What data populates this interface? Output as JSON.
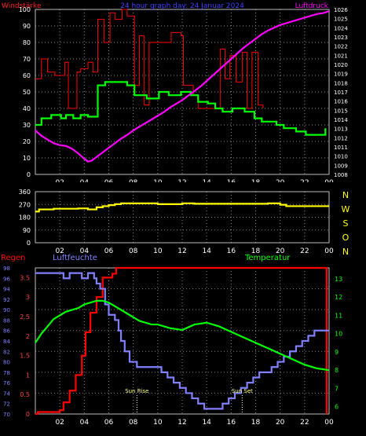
{
  "chart_data": [
    {
      "type": "line",
      "title": "24 hour graph day: 24 Januar 2024",
      "left_label": "Windstärke",
      "right_label": "Luftdruck",
      "colors": {
        "title": "#4040ff",
        "left_label": "#ff2020",
        "right_label": "#ff00ff",
        "ticks": "#ffffff",
        "right_ticks": "#ffffff"
      },
      "x_ticks": [
        "02",
        "04",
        "06",
        "08",
        "10",
        "12",
        "14",
        "16",
        "18",
        "20",
        "22",
        "00"
      ],
      "y_left_ticks": [
        "0",
        "10",
        "20",
        "30",
        "40",
        "50",
        "60",
        "70",
        "80",
        "90",
        "100"
      ],
      "y_right_ticks": [
        "1008",
        "1009",
        "1010",
        "1011",
        "1012",
        "1013",
        "1014",
        "1015",
        "1016",
        "1017",
        "1018",
        "1019",
        "1020",
        "1021",
        "1022",
        "1023",
        "1024",
        "1025",
        "1026"
      ],
      "xlim": [
        0,
        24
      ],
      "ylim": [
        0,
        100
      ],
      "y_right_lim": [
        1008,
        1026
      ],
      "grid": true,
      "series": [
        {
          "color": "#ff0000",
          "style": "step",
          "axis": "left",
          "x": [
            0,
            0.5,
            1,
            1.6,
            2.4,
            2.7,
            3.4,
            3.7,
            4.3,
            4.7,
            5.1,
            5.6,
            6.1,
            6.5,
            7.1,
            7.5,
            8.1,
            8.5,
            8.9,
            9.3,
            9.5,
            9.9,
            10.3,
            11.1,
            11.9,
            12.1,
            12.9,
            13.3,
            15.1,
            15.5,
            15.9,
            16.4,
            16.9,
            17.3,
            17.7,
            18.2,
            18.6
          ],
          "y": [
            58,
            70,
            62,
            60,
            68,
            40,
            62,
            64,
            68,
            62,
            94,
            80,
            98,
            94,
            100,
            96,
            54,
            84,
            42,
            80,
            80,
            80,
            80,
            86,
            84,
            54,
            48,
            40,
            76,
            58,
            72,
            56,
            74,
            40,
            74,
            42,
            40
          ]
        },
        {
          "color": "#00ff00",
          "style": "step",
          "axis": "left",
          "x": [
            0,
            0.5,
            1.3,
            2.1,
            2.5,
            3.1,
            3.7,
            4.3,
            5.1,
            5.7,
            7.5,
            8.1,
            9.1,
            10.1,
            10.9,
            11.9,
            12.7,
            13.3,
            14.1,
            14.7,
            15.3,
            16.1,
            17.1,
            17.9,
            18.5,
            19.7,
            20.3,
            21.3,
            22.1,
            23.7
          ],
          "y": [
            30,
            34,
            36,
            34,
            36,
            34,
            36,
            35,
            54,
            56,
            54,
            48,
            46,
            50,
            48,
            50,
            48,
            44,
            43,
            40,
            38,
            40,
            38,
            34,
            32,
            30,
            28,
            26,
            24,
            28
          ]
        },
        {
          "color": "#ff00ff",
          "style": "line",
          "axis": "right",
          "x": [
            0,
            0.5,
            1,
            1.5,
            2,
            2.5,
            3,
            3.5,
            4,
            4.3,
            4.6,
            5,
            5.5,
            6,
            6.5,
            7,
            7.5,
            8,
            8.5,
            9,
            9.5,
            10,
            10.5,
            11,
            11.5,
            12,
            12.5,
            13,
            13.5,
            14,
            14.5,
            15,
            15.5,
            16,
            16.5,
            17,
            17.5,
            18,
            18.5,
            19,
            19.5,
            20,
            20.5,
            21,
            21.5,
            22,
            22.5,
            23,
            23.5,
            24
          ],
          "y": [
            1012.8,
            1012.2,
            1011.8,
            1011.4,
            1011.2,
            1011.1,
            1010.8,
            1010.3,
            1009.7,
            1009.4,
            1009.5,
            1009.9,
            1010.4,
            1010.9,
            1011.4,
            1011.9,
            1012.3,
            1012.8,
            1013.2,
            1013.6,
            1014.0,
            1014.4,
            1014.8,
            1015.3,
            1015.7,
            1016.1,
            1016.6,
            1017.1,
            1017.6,
            1018.2,
            1018.8,
            1019.4,
            1020.0,
            1020.6,
            1021.2,
            1021.8,
            1022.3,
            1022.8,
            1023.3,
            1023.7,
            1024.0,
            1024.3,
            1024.5,
            1024.7,
            1024.9,
            1025.1,
            1025.3,
            1025.5,
            1025.6,
            1025.8
          ]
        }
      ]
    },
    {
      "type": "line",
      "title": "",
      "x_ticks": [
        "02",
        "04",
        "06",
        "08",
        "10",
        "12",
        "14",
        "16",
        "18",
        "20",
        "22",
        "00"
      ],
      "y_left_ticks": [
        "0",
        "90",
        "180",
        "270",
        "360"
      ],
      "ylim": [
        0,
        360
      ],
      "xlim": [
        0,
        24
      ],
      "direction_labels": [
        "N",
        "W",
        "S",
        "O",
        "N"
      ],
      "grid": true,
      "series": [
        {
          "color": "#ffff00",
          "style": "step",
          "axis": "left",
          "x": [
            0,
            0.3,
            1.5,
            3.5,
            4.3,
            5,
            5.5,
            6,
            6.5,
            7,
            10,
            12,
            13,
            19,
            20,
            20.5,
            24
          ],
          "y": [
            220,
            235,
            240,
            242,
            235,
            250,
            258,
            265,
            272,
            278,
            272,
            278,
            275,
            278,
            268,
            258,
            258
          ]
        }
      ]
    },
    {
      "type": "line",
      "labels": {
        "left": "Regen",
        "humidity": "Luftfeuchte",
        "right": "Temperatur"
      },
      "colors": {
        "left": "#ff0000",
        "humidity": "#8080ff",
        "right": "#00ff00"
      },
      "x_ticks": [
        "02",
        "04",
        "06",
        "08",
        "10",
        "12",
        "14",
        "16",
        "18",
        "20",
        "22",
        "00"
      ],
      "y_rain_ticks": [
        "0",
        "0.5",
        "1",
        "1.5",
        "2",
        "2.5",
        "3",
        "3.5"
      ],
      "y_humidity_ticks": [
        "70",
        "72",
        "74",
        "76",
        "78",
        "80",
        "82",
        "84",
        "86",
        "88",
        "90",
        "92",
        "94",
        "96",
        "98"
      ],
      "y_temp_ticks": [
        "6",
        "7",
        "8",
        "9",
        "10",
        "11",
        "12",
        "13"
      ],
      "rain_lim": [
        0,
        3.75
      ],
      "humidity_lim": [
        70,
        98
      ],
      "temp_lim": [
        5.6,
        13.6
      ],
      "xlim": [
        0,
        24
      ],
      "annotations": [
        {
          "text": "Sun Rise",
          "x": 8.3
        },
        {
          "text": "Sun Set",
          "x": 16.9
        }
      ],
      "grid": true,
      "series": [
        {
          "color": "#ff0000",
          "axis": "rain",
          "style": "step",
          "x": [
            0,
            0.2,
            2,
            2.3,
            2.8,
            3.3,
            3.8,
            4.1,
            4.5,
            5.0,
            5.5,
            6.0,
            6.3,
            6.6,
            7.2,
            23.6,
            23.8
          ],
          "y": [
            0,
            0.05,
            0.1,
            0.3,
            0.6,
            1.0,
            1.5,
            2.1,
            2.6,
            3.0,
            3.5,
            3.5,
            3.6,
            3.75,
            3.75,
            3.75,
            0
          ]
        },
        {
          "color": "#8080ff",
          "axis": "humidity",
          "style": "step",
          "x": [
            0,
            2.3,
            2.8,
            3.8,
            4.3,
            4.8,
            5.0,
            5.3,
            5.7,
            6.0,
            6.5,
            6.8,
            7.0,
            7.3,
            7.7,
            8.3,
            10.3,
            10.8,
            11.3,
            11.8,
            12.3,
            12.8,
            13.3,
            13.8,
            15.3,
            15.8,
            16.3,
            16.8,
            17.3,
            17.8,
            18.3,
            19.3,
            19.8,
            20.3,
            20.8,
            21.3,
            21.8,
            22.3,
            22.8,
            23.2,
            24
          ],
          "y": [
            97,
            96,
            97,
            96,
            97,
            96,
            95,
            94,
            91,
            89,
            88,
            86,
            84,
            82,
            80,
            79,
            78,
            77,
            76,
            75,
            74,
            73,
            72,
            71,
            72,
            73,
            74,
            75,
            76,
            77,
            78,
            79,
            80,
            81,
            82,
            83,
            84,
            85,
            86,
            86,
            86
          ]
        },
        {
          "color": "#00ff00",
          "axis": "temp",
          "style": "line",
          "x": [
            0,
            0.5,
            1,
            1.5,
            2,
            2.5,
            3,
            3.5,
            4,
            4.5,
            5,
            5.5,
            6,
            6.5,
            7,
            7.5,
            8,
            8.5,
            9,
            9.5,
            10,
            11,
            12,
            13,
            14,
            15,
            16,
            17,
            18,
            19,
            20,
            21,
            22,
            23,
            24
          ],
          "y": [
            9.5,
            10.0,
            10.4,
            10.8,
            11.0,
            11.2,
            11.3,
            11.4,
            11.6,
            11.7,
            11.8,
            11.8,
            11.7,
            11.5,
            11.3,
            11.1,
            10.9,
            10.7,
            10.6,
            10.5,
            10.5,
            10.3,
            10.2,
            10.5,
            10.6,
            10.4,
            10.1,
            9.8,
            9.5,
            9.2,
            8.9,
            8.6,
            8.3,
            8.1,
            8.0
          ]
        }
      ]
    }
  ]
}
